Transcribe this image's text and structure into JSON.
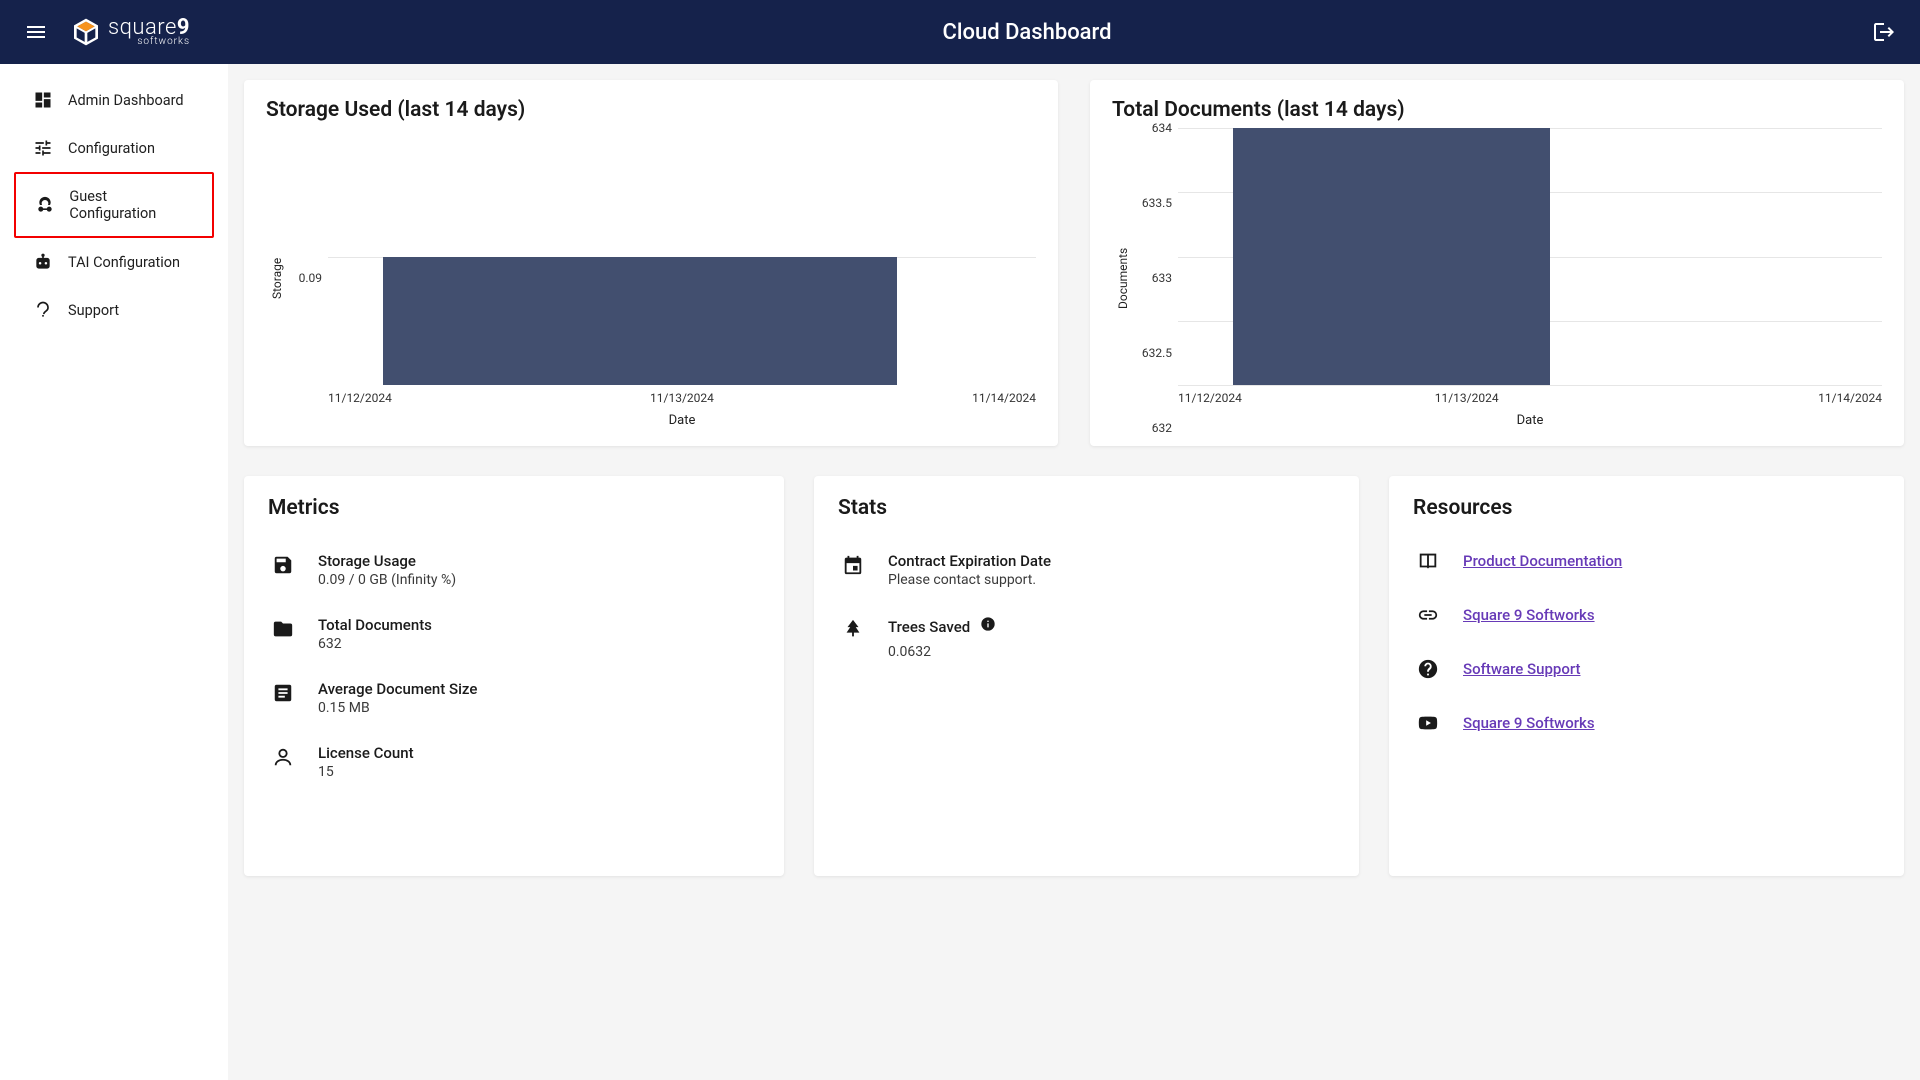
{
  "header": {
    "title": "Cloud Dashboard",
    "brand_main1": "square",
    "brand_main2": "9",
    "brand_sub": "softworks"
  },
  "sidebar": {
    "items": [
      {
        "label": "Admin Dashboard",
        "highlight": false
      },
      {
        "label": "Configuration",
        "highlight": false
      },
      {
        "label": "Guest Configuration",
        "highlight": true
      },
      {
        "label": "TAI Configuration",
        "highlight": false
      },
      {
        "label": "Support",
        "highlight": false
      }
    ]
  },
  "storage_chart": {
    "title": "Storage Used (last 14 days)",
    "type": "bar",
    "y_label": "Storage",
    "x_label": "Date",
    "y_ticks": [
      "0.09"
    ],
    "y_tick_positions_pct": [
      50
    ],
    "x_ticks": [
      "11/12/2024",
      "11/13/2024",
      "11/14/2024"
    ],
    "bar_color": "#424f6f",
    "grid_color": "#e6e6e6",
    "background": "#ffffff",
    "bar": {
      "left_pct": 7.8,
      "width_pct": 72.5,
      "height_pct": 50
    }
  },
  "docs_chart": {
    "title": "Total Documents (last 14 days)",
    "type": "bar",
    "y_label": "Documents",
    "x_label": "Date",
    "y_ticks": [
      "634",
      "633.5",
      "633",
      "632.5",
      "632"
    ],
    "x_ticks": [
      "11/12/2024",
      "11/13/2024",
      "11/14/2024"
    ],
    "bar_color": "#424f6f",
    "grid_color": "#e6e6e6",
    "background": "#ffffff",
    "bar": {
      "left_pct": 7.8,
      "width_pct": 45,
      "height_pct": 100
    }
  },
  "metrics": {
    "title": "Metrics",
    "items": [
      {
        "label": "Storage Usage",
        "value": "0.09 / 0 GB (Infinity %)"
      },
      {
        "label": "Total Documents",
        "value": "632"
      },
      {
        "label": "Average Document Size",
        "value": "0.15 MB"
      },
      {
        "label": "License Count",
        "value": "15"
      }
    ]
  },
  "stats": {
    "title": "Stats",
    "items": [
      {
        "label": "Contract Expiration Date",
        "value": "Please contact support.",
        "info": false
      },
      {
        "label": "Trees Saved",
        "value": "0.0632",
        "info": true
      }
    ]
  },
  "resources": {
    "title": "Resources",
    "items": [
      {
        "label": "Product Documentation"
      },
      {
        "label": "Square 9 Softworks"
      },
      {
        "label": "Software Support"
      },
      {
        "label": "Square 9 Softworks"
      }
    ]
  }
}
